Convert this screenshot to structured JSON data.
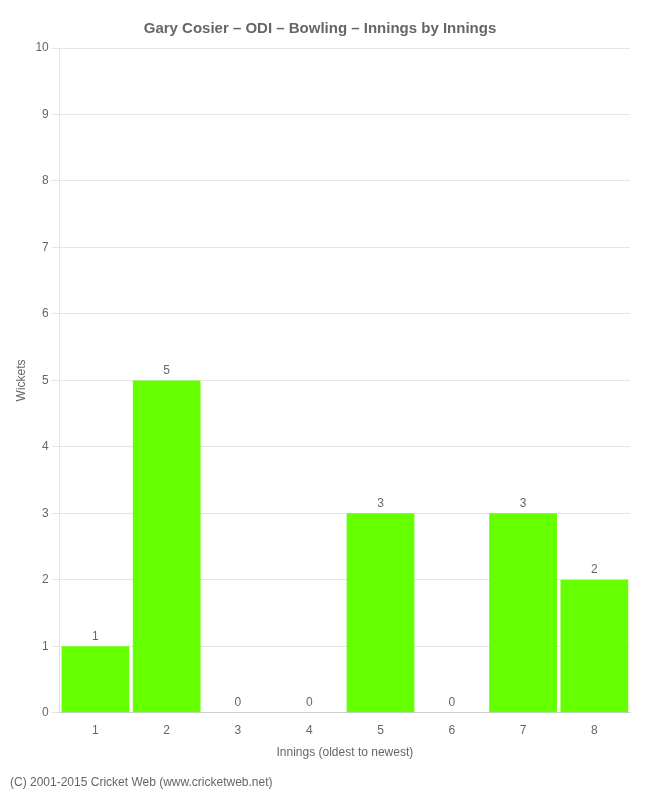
{
  "chart_data": {
    "type": "bar",
    "title": "Gary Cosier – ODI – Bowling – Innings by Innings",
    "xlabel": "Innings (oldest to newest)",
    "ylabel": "Wickets",
    "categories": [
      "1",
      "2",
      "3",
      "4",
      "5",
      "6",
      "7",
      "8"
    ],
    "values": [
      1,
      5,
      0,
      0,
      3,
      0,
      3,
      2
    ],
    "color": "#66ff00",
    "ylim": [
      0,
      10
    ],
    "yticks": [
      0,
      1,
      2,
      3,
      4,
      5,
      6,
      7,
      8,
      9,
      10
    ],
    "grid": true,
    "data_labels": true,
    "annotations": [
      "(C) 2001-2015 Cricket Web (www.cricketweb.net)"
    ]
  }
}
